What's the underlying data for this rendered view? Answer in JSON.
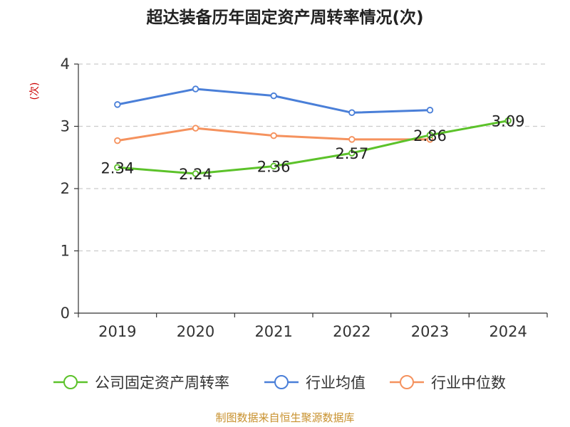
{
  "chart_data": {
    "type": "line",
    "title": "超达装备历年固定资产周转率情况(次)",
    "ylabel": "(次)",
    "xlabel": "",
    "categories": [
      "2019",
      "2020",
      "2021",
      "2022",
      "2023",
      "2024"
    ],
    "ylim": [
      0,
      4
    ],
    "yticks": [
      0,
      1,
      2,
      3,
      4
    ],
    "grid": true,
    "legend_position": "bottom",
    "series": [
      {
        "name": "公司固定资产周转率",
        "values": [
          2.34,
          2.24,
          2.36,
          2.57,
          2.86,
          3.09
        ],
        "color": "#5cc22a",
        "labels": [
          "2.34",
          "2.24",
          "2.36",
          "2.57",
          "2.86",
          "3.09"
        ]
      },
      {
        "name": "行业均值",
        "values": [
          3.35,
          3.6,
          3.49,
          3.22,
          3.26,
          null
        ],
        "color": "#4a7fd8"
      },
      {
        "name": "行业中位数",
        "values": [
          2.77,
          2.97,
          2.85,
          2.79,
          2.79,
          null
        ],
        "color": "#f5925e"
      }
    ]
  },
  "source": "制图数据来自恒生聚源数据库"
}
